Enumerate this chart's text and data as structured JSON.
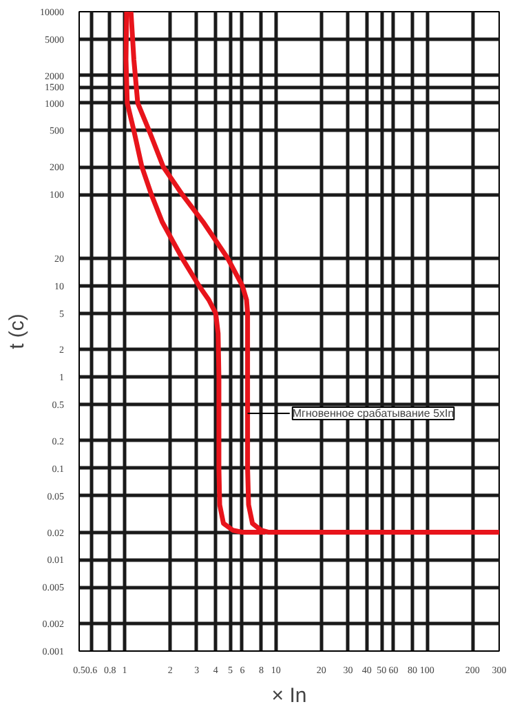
{
  "chart_data": {
    "type": "line",
    "xlabel": "× In",
    "ylabel": "t (c)",
    "log": "xy",
    "grid": true,
    "line_style": "solid",
    "marker": "none",
    "xlim": [
      0.5,
      300
    ],
    "ylim": [
      0.001,
      10000
    ],
    "xticks": [
      0.5,
      0.6,
      0.8,
      1,
      2,
      3,
      4,
      5,
      6,
      8,
      10,
      20,
      30,
      40,
      50,
      60,
      80,
      100,
      200,
      300
    ],
    "yticks": [
      0.001,
      0.002,
      0.005,
      0.01,
      0.02,
      0.05,
      0.1,
      0.2,
      0.5,
      1,
      2,
      5,
      10,
      20,
      100,
      200,
      500,
      1000,
      1500,
      2000,
      5000,
      10000
    ],
    "series": [
      {
        "color": "#e8141b",
        "x": [
          1.03,
          1.02,
          1.04,
          1.15,
          1.3,
          1.5,
          1.77,
          2.4,
          3.1,
          3.6,
          4.0,
          4.15,
          4.2,
          4.2,
          4.25,
          4.5,
          5.2,
          6,
          8.5
        ],
        "values": [
          10000,
          3000,
          1000,
          500,
          200,
          100,
          50,
          20,
          10,
          7,
          5,
          3,
          1,
          0.1,
          0.04,
          0.025,
          0.021,
          0.02,
          0.02
        ]
      },
      {
        "color": "#e8141b",
        "x": [
          1.1,
          1.15,
          1.22,
          1.45,
          1.8,
          2.4,
          3.3,
          4.8,
          6.0,
          6.4,
          6.5,
          6.5,
          6.5,
          6.6,
          7.0,
          8.0,
          9,
          300
        ],
        "values": [
          10000,
          3000,
          1000,
          500,
          200,
          100,
          50,
          20,
          10,
          7,
          5,
          1,
          0.1,
          0.04,
          0.025,
          0.021,
          0.02,
          0.02
        ]
      }
    ],
    "annotations": [
      {
        "text": "Мгновенное срабатывание 5xIn",
        "x": 6.5,
        "y": 0.4
      }
    ]
  }
}
